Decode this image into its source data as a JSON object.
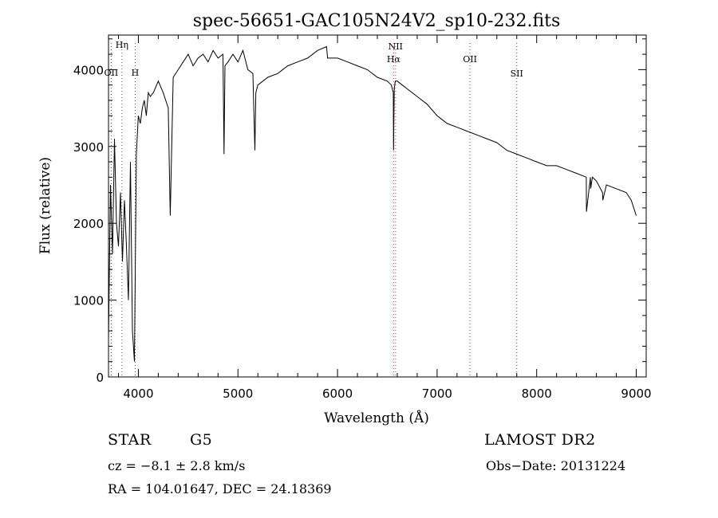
{
  "chart_data": {
    "type": "line",
    "title": "spec-56651-GAC105N24V2_sp10-232.fits",
    "xlabel": "Wavelength (Å)",
    "ylabel": "Flux (relative)",
    "xlim": [
      3700,
      9100
    ],
    "ylim": [
      0,
      4450
    ],
    "xticks": [
      4000,
      5000,
      6000,
      7000,
      8000,
      9000
    ],
    "yticks": [
      0,
      1000,
      2000,
      3000,
      4000
    ],
    "line_markers": [
      {
        "name": "Hη",
        "wavelength": 3835
      },
      {
        "name": "OII",
        "wavelength": 3727
      },
      {
        "name": "H",
        "wavelength": 3968
      },
      {
        "name": "NII",
        "wavelength": 6583
      },
      {
        "name": "Hα",
        "wavelength": 6563
      },
      {
        "name": "OII",
        "wavelength": 7330
      },
      {
        "name": "SII",
        "wavelength": 7800
      }
    ],
    "series": [
      {
        "x": [
          3700,
          3720,
          3740,
          3760,
          3780,
          3800,
          3820,
          3840,
          3860,
          3880,
          3900,
          3920,
          3940,
          3960,
          3980,
          4000,
          4020,
          4040,
          4060,
          4080,
          4100,
          4120,
          4150,
          4200,
          4250,
          4300,
          4320,
          4350,
          4400,
          4450,
          4500,
          4550,
          4600,
          4650,
          4700,
          4750,
          4800,
          4850,
          4860,
          4870,
          4900,
          4950,
          5000,
          5050,
          5100,
          5150,
          5170,
          5180,
          5200,
          5250,
          5300,
          5400,
          5500,
          5600,
          5700,
          5800,
          5890,
          5900,
          6000,
          6100,
          6200,
          6300,
          6400,
          6500,
          6540,
          6560,
          6563,
          6570,
          6580,
          6600,
          6650,
          6700,
          6800,
          6900,
          7000,
          7100,
          7200,
          7300,
          7400,
          7500,
          7600,
          7700,
          7800,
          7900,
          8000,
          8100,
          8200,
          8300,
          8400,
          8498,
          8500,
          8540,
          8542,
          8560,
          8600,
          8662,
          8664,
          8700,
          8800,
          8900,
          8950,
          9000
        ],
        "y": [
          500,
          2500,
          1600,
          3100,
          2000,
          1700,
          2400,
          1500,
          2300,
          1700,
          1000,
          2800,
          600,
          200,
          2900,
          3400,
          3300,
          3500,
          3600,
          3400,
          3700,
          3650,
          3700,
          3850,
          3700,
          3500,
          2100,
          3900,
          4000,
          4100,
          4200,
          4050,
          4150,
          4200,
          4100,
          4250,
          4150,
          4200,
          2900,
          4050,
          4100,
          4200,
          4100,
          4250,
          4000,
          3950,
          2950,
          3700,
          3800,
          3850,
          3900,
          3950,
          4050,
          4100,
          4150,
          4250,
          4300,
          4150,
          4150,
          4100,
          4050,
          4000,
          3900,
          3850,
          3800,
          3700,
          2950,
          3750,
          3850,
          3850,
          3800,
          3750,
          3650,
          3550,
          3400,
          3300,
          3250,
          3200,
          3150,
          3100,
          3050,
          2950,
          2900,
          2850,
          2800,
          2750,
          2750,
          2700,
          2650,
          2600,
          2150,
          2600,
          2450,
          2600,
          2550,
          2400,
          2300,
          2500,
          2450,
          2400,
          2300,
          2100
        ]
      }
    ]
  },
  "info": {
    "object_class": "STAR",
    "subclass": "G5",
    "survey": "LAMOST DR2",
    "redshift": "cz = −8.1 ± 2.8 km/s",
    "obs_date": "Obs−Date: 20131224",
    "coords": "RA = 104.01647, DEC =  24.18369"
  }
}
